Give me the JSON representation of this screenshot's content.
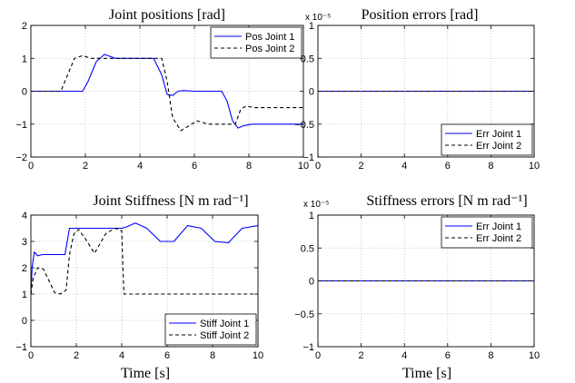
{
  "figure": {
    "colors": {
      "blue": "#0000ff",
      "black": "#000000",
      "grid": "#bdbdbd"
    }
  },
  "chart_data": [
    {
      "type": "line",
      "title": "Joint positions [rad]",
      "xlabel": "",
      "ylabel": "",
      "xlim": [
        0,
        10
      ],
      "ylim": [
        -2,
        2
      ],
      "xticks": [
        "0",
        "2",
        "4",
        "6",
        "8",
        "10"
      ],
      "yticks": [
        "−2",
        "−1",
        "0",
        "1",
        "2"
      ],
      "exponent": "",
      "grid": true,
      "legend_position": "top-right",
      "series": [
        {
          "name": "Pos Joint 1",
          "style": "solid",
          "color": "#0000ff",
          "x": [
            0,
            1.9,
            2.1,
            2.4,
            2.7,
            2.9,
            3.1,
            3.5,
            4.5,
            4.8,
            5.0,
            5.2,
            5.4,
            5.6,
            6.0,
            7.0,
            7.2,
            7.4,
            7.6,
            7.8,
            8.1,
            8.5,
            10
          ],
          "y": [
            0,
            0,
            0.3,
            0.9,
            1.12,
            1.06,
            1.0,
            1.0,
            1.0,
            0.5,
            -0.1,
            -0.13,
            0.0,
            0.02,
            0.0,
            0.0,
            -0.3,
            -0.9,
            -1.12,
            -1.05,
            -1.0,
            -1.0,
            -1.0
          ]
        },
        {
          "name": "Pos Joint 2",
          "style": "dashed",
          "color": "#000000",
          "x": [
            0,
            1.1,
            1.3,
            1.6,
            1.9,
            2.2,
            2.6,
            4.8,
            5.0,
            5.2,
            5.5,
            5.8,
            6.1,
            6.5,
            7.0,
            7.5,
            7.7,
            7.9,
            8.2,
            8.6,
            10
          ],
          "y": [
            0,
            0,
            0.4,
            1.0,
            1.08,
            1.0,
            1.0,
            1.0,
            0.3,
            -0.8,
            -1.2,
            -1.05,
            -0.9,
            -1.0,
            -1.0,
            -1.0,
            -0.55,
            -0.45,
            -0.5,
            -0.5,
            -0.5
          ]
        }
      ]
    },
    {
      "type": "line",
      "title": "Position errors [rad]",
      "xlabel": "",
      "ylabel": "",
      "xlim": [
        0,
        10
      ],
      "ylim": [
        -1,
        1
      ],
      "xticks": [
        "0",
        "2",
        "4",
        "6",
        "8",
        "10"
      ],
      "yticks": [
        "−1",
        "−0.5",
        "0",
        "0.5",
        "1"
      ],
      "exponent": "x 10⁻⁵",
      "grid": true,
      "legend_position": "bottom-right",
      "series": [
        {
          "name": "Err Joint 1",
          "style": "solid",
          "color": "#0000ff",
          "x": [
            0,
            10
          ],
          "y": [
            0,
            0
          ]
        },
        {
          "name": "Err Joint 2",
          "style": "dashed",
          "color": "#000000",
          "x": [
            0,
            10
          ],
          "y": [
            0,
            0
          ]
        }
      ]
    },
    {
      "type": "line",
      "title": "Joint Stiffness [N m rad⁻¹]",
      "xlabel": "Time [s]",
      "ylabel": "",
      "xlim": [
        0,
        10
      ],
      "ylim": [
        -1,
        4
      ],
      "xticks": [
        "0",
        "2",
        "4",
        "6",
        "8",
        "10"
      ],
      "yticks": [
        "−1",
        "0",
        "1",
        "2",
        "3",
        "4"
      ],
      "exponent": "",
      "grid": true,
      "legend_position": "bottom-right",
      "series": [
        {
          "name": "Stiff Joint 1",
          "style": "solid",
          "color": "#0000ff",
          "x": [
            0,
            0.05,
            0.15,
            0.3,
            0.5,
            1.5,
            1.6,
            1.7,
            1.75,
            4.0,
            4.2,
            4.6,
            5.1,
            5.7,
            6.3,
            6.9,
            7.5,
            8.1,
            8.7,
            9.3,
            10
          ],
          "y": [
            1.0,
            2.0,
            2.6,
            2.45,
            2.5,
            2.5,
            3.0,
            3.5,
            3.5,
            3.5,
            3.55,
            3.7,
            3.5,
            3.0,
            3.0,
            3.6,
            3.5,
            3.0,
            2.95,
            3.5,
            3.6
          ]
        },
        {
          "name": "Stiff Joint 2",
          "style": "dashed",
          "color": "#000000",
          "x": [
            0,
            0.1,
            0.3,
            0.55,
            0.8,
            1.05,
            1.3,
            1.55,
            1.7,
            1.9,
            2.1,
            2.4,
            2.8,
            3.3,
            3.7,
            4.0,
            4.05,
            4.1,
            10
          ],
          "y": [
            1.0,
            1.6,
            2.0,
            1.95,
            1.5,
            1.05,
            1.0,
            1.15,
            2.5,
            3.3,
            3.45,
            3.1,
            2.55,
            3.3,
            3.5,
            3.4,
            2.0,
            1.0,
            1.0
          ]
        }
      ]
    },
    {
      "type": "line",
      "title": "Stiffness errors [N m rad⁻¹]",
      "xlabel": "Time [s]",
      "ylabel": "",
      "xlim": [
        0,
        10
      ],
      "ylim": [
        -1,
        1
      ],
      "xticks": [
        "0",
        "2",
        "4",
        "6",
        "8",
        "10"
      ],
      "yticks": [
        "−1",
        "−0.5",
        "0",
        "0.5",
        "1"
      ],
      "exponent": "x 10⁻⁵",
      "grid": true,
      "legend_position": "top-right",
      "series": [
        {
          "name": "Err Joint 1",
          "style": "solid",
          "color": "#0000ff",
          "x": [
            0,
            10
          ],
          "y": [
            0,
            0
          ]
        },
        {
          "name": "Err Joint 2",
          "style": "dashed",
          "color": "#000000",
          "x": [
            0,
            10
          ],
          "y": [
            0,
            0
          ]
        }
      ]
    }
  ]
}
